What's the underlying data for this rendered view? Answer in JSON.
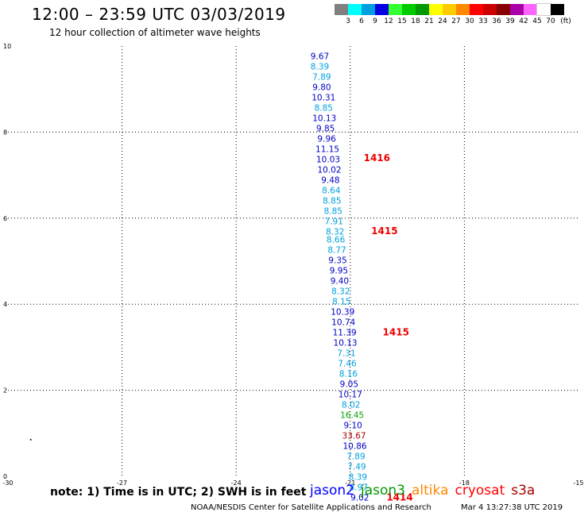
{
  "header": {
    "title": "12:00 – 23:59 UTC 03/03/2019",
    "subtitle": "12 hour collection of altimeter wave heights"
  },
  "color_scale": {
    "unit": "(ft)",
    "bins": [
      {
        "label": "3",
        "color": "#808080"
      },
      {
        "label": "6",
        "color": "#00ffff"
      },
      {
        "label": "9",
        "color": "#00a0e0"
      },
      {
        "label": "12",
        "color": "#0000e0"
      },
      {
        "label": "15",
        "color": "#33ff33"
      },
      {
        "label": "18",
        "color": "#00cc00"
      },
      {
        "label": "21",
        "color": "#009900"
      },
      {
        "label": "24",
        "color": "#ffff00"
      },
      {
        "label": "27",
        "color": "#ffcc00"
      },
      {
        "label": "30",
        "color": "#ff8800"
      },
      {
        "label": "33",
        "color": "#ff0000"
      },
      {
        "label": "36",
        "color": "#cc0000"
      },
      {
        "label": "39",
        "color": "#880000"
      },
      {
        "label": "42",
        "color": "#aa00aa"
      },
      {
        "label": "45",
        "color": "#ff66ff"
      },
      {
        "label": "70",
        "color": "#ffffff"
      },
      {
        "label": "",
        "color": "#000000"
      }
    ]
  },
  "chart_data": {
    "type": "scatter",
    "xlim": [
      -30,
      -15
    ],
    "ylim": [
      0,
      10
    ],
    "x_ticks": [
      "-30",
      "-27",
      "-24",
      "-21",
      "-18",
      "-15"
    ],
    "y_ticks": [
      "0",
      "2",
      "4",
      "6",
      "8",
      "10"
    ],
    "grid": true,
    "points": [
      {
        "x": -21.8,
        "y": 9.77,
        "label": "9.67",
        "color": "#0000c8"
      },
      {
        "x": -21.8,
        "y": 9.53,
        "label": "8.39",
        "color": "#00a0e0"
      },
      {
        "x": -21.75,
        "y": 9.29,
        "label": "7.89",
        "color": "#00a0e0"
      },
      {
        "x": -21.75,
        "y": 9.05,
        "label": "9.80",
        "color": "#0000c8"
      },
      {
        "x": -21.7,
        "y": 8.81,
        "label": "10.31",
        "color": "#0000c8"
      },
      {
        "x": -21.7,
        "y": 8.57,
        "label": "8.85",
        "color": "#00a0e0"
      },
      {
        "x": -21.68,
        "y": 8.33,
        "label": "10.13",
        "color": "#0000c8"
      },
      {
        "x": -21.65,
        "y": 8.09,
        "label": "9.85",
        "color": "#0000c8"
      },
      {
        "x": -21.62,
        "y": 7.85,
        "label": "9.96",
        "color": "#0000c8"
      },
      {
        "x": -21.6,
        "y": 7.61,
        "label": "11.15",
        "color": "#0000c8"
      },
      {
        "x": -21.58,
        "y": 7.37,
        "label": "10.03",
        "color": "#0000c8"
      },
      {
        "x": -21.55,
        "y": 7.13,
        "label": "10.02",
        "color": "#0000c8"
      },
      {
        "x": -21.52,
        "y": 6.89,
        "label": "9.48",
        "color": "#0000c8"
      },
      {
        "x": -21.5,
        "y": 6.65,
        "label": "8.64",
        "color": "#00a0e0"
      },
      {
        "x": -21.48,
        "y": 6.41,
        "label": "8.85",
        "color": "#00a0e0"
      },
      {
        "x": -21.45,
        "y": 6.17,
        "label": "8.85",
        "color": "#00a0e0"
      },
      {
        "x": -21.43,
        "y": 5.93,
        "label": "7.91",
        "color": "#00a0e0"
      },
      {
        "x": -21.4,
        "y": 5.69,
        "label": "8.32",
        "color": "#00a0e0"
      },
      {
        "x": -21.38,
        "y": 5.51,
        "label": "8.66",
        "color": "#00a0e0"
      },
      {
        "x": -21.35,
        "y": 5.27,
        "label": "8.77",
        "color": "#00a0e0"
      },
      {
        "x": -21.33,
        "y": 5.03,
        "label": "9.35",
        "color": "#0000c8"
      },
      {
        "x": -21.3,
        "y": 4.79,
        "label": "9.95",
        "color": "#0000c8"
      },
      {
        "x": -21.28,
        "y": 4.55,
        "label": "9.40",
        "color": "#0000c8"
      },
      {
        "x": -21.25,
        "y": 4.31,
        "label": "8.32",
        "color": "#00a0e0"
      },
      {
        "x": -21.23,
        "y": 4.07,
        "label": "8.15",
        "color": "#00a0e0"
      },
      {
        "x": -21.2,
        "y": 3.83,
        "label": "10.39",
        "color": "#0000c8"
      },
      {
        "x": -21.18,
        "y": 3.59,
        "label": "10.74",
        "color": "#0000c8"
      },
      {
        "x": -21.15,
        "y": 3.35,
        "label": "11.39",
        "color": "#0000c8"
      },
      {
        "x": -21.13,
        "y": 3.11,
        "label": "10.13",
        "color": "#0000c8"
      },
      {
        "x": -21.1,
        "y": 2.87,
        "label": "7.31",
        "color": "#00a0e0"
      },
      {
        "x": -21.08,
        "y": 2.63,
        "label": "7.46",
        "color": "#00a0e0"
      },
      {
        "x": -21.05,
        "y": 2.39,
        "label": "8.16",
        "color": "#00a0e0"
      },
      {
        "x": -21.03,
        "y": 2.15,
        "label": "9.05",
        "color": "#0000c8"
      },
      {
        "x": -21.0,
        "y": 1.91,
        "label": "10.17",
        "color": "#0000c8"
      },
      {
        "x": -20.98,
        "y": 1.67,
        "label": "8.02",
        "color": "#00a0e0"
      },
      {
        "x": -20.95,
        "y": 1.43,
        "label": "16.45",
        "color": "#00aa00"
      },
      {
        "x": -20.93,
        "y": 1.19,
        "label": "9.10",
        "color": "#0000c8"
      },
      {
        "x": -20.9,
        "y": 0.95,
        "label": "33.67",
        "color": "#aa0000"
      },
      {
        "x": -20.88,
        "y": 0.71,
        "label": "10.86",
        "color": "#0000c8"
      },
      {
        "x": -20.85,
        "y": 0.47,
        "label": "7.89",
        "color": "#00a0e0"
      },
      {
        "x": -20.83,
        "y": 0.23,
        "label": "7.49",
        "color": "#00a0e0"
      },
      {
        "x": -20.8,
        "y": -0.01,
        "label": "8.39",
        "color": "#00a0e0"
      },
      {
        "x": -20.78,
        "y": -0.25,
        "label": "8.97",
        "color": "#00a0e0"
      },
      {
        "x": -20.75,
        "y": -0.49,
        "label": "9.02",
        "color": "#0000c8"
      }
    ],
    "time_labels": [
      {
        "x": -20.3,
        "y": 7.4,
        "label": "1416"
      },
      {
        "x": -20.1,
        "y": 5.7,
        "label": "1415"
      },
      {
        "x": -19.8,
        "y": 3.35,
        "label": "1415"
      },
      {
        "x": -19.7,
        "y": -0.49,
        "label": "1414"
      }
    ],
    "marks": [
      {
        "x": -29.4,
        "y": 0.85
      }
    ]
  },
  "note": "note: 1) Time is in UTC; 2) SWH is in feet",
  "legend": [
    {
      "name": "jason2",
      "color": "#0000ff"
    },
    {
      "name": "jason3",
      "color": "#009900"
    },
    {
      "name": "altika",
      "color": "#ff8800"
    },
    {
      "name": "cryosat",
      "color": "#ff0000"
    },
    {
      "name": "s3a",
      "color": "#aa0000"
    }
  ],
  "footer": {
    "credit": "NOAA/NESDIS Center for Satellite Applications and Research",
    "timestamp": "Mar  4 13:27:38 UTC 2019"
  }
}
